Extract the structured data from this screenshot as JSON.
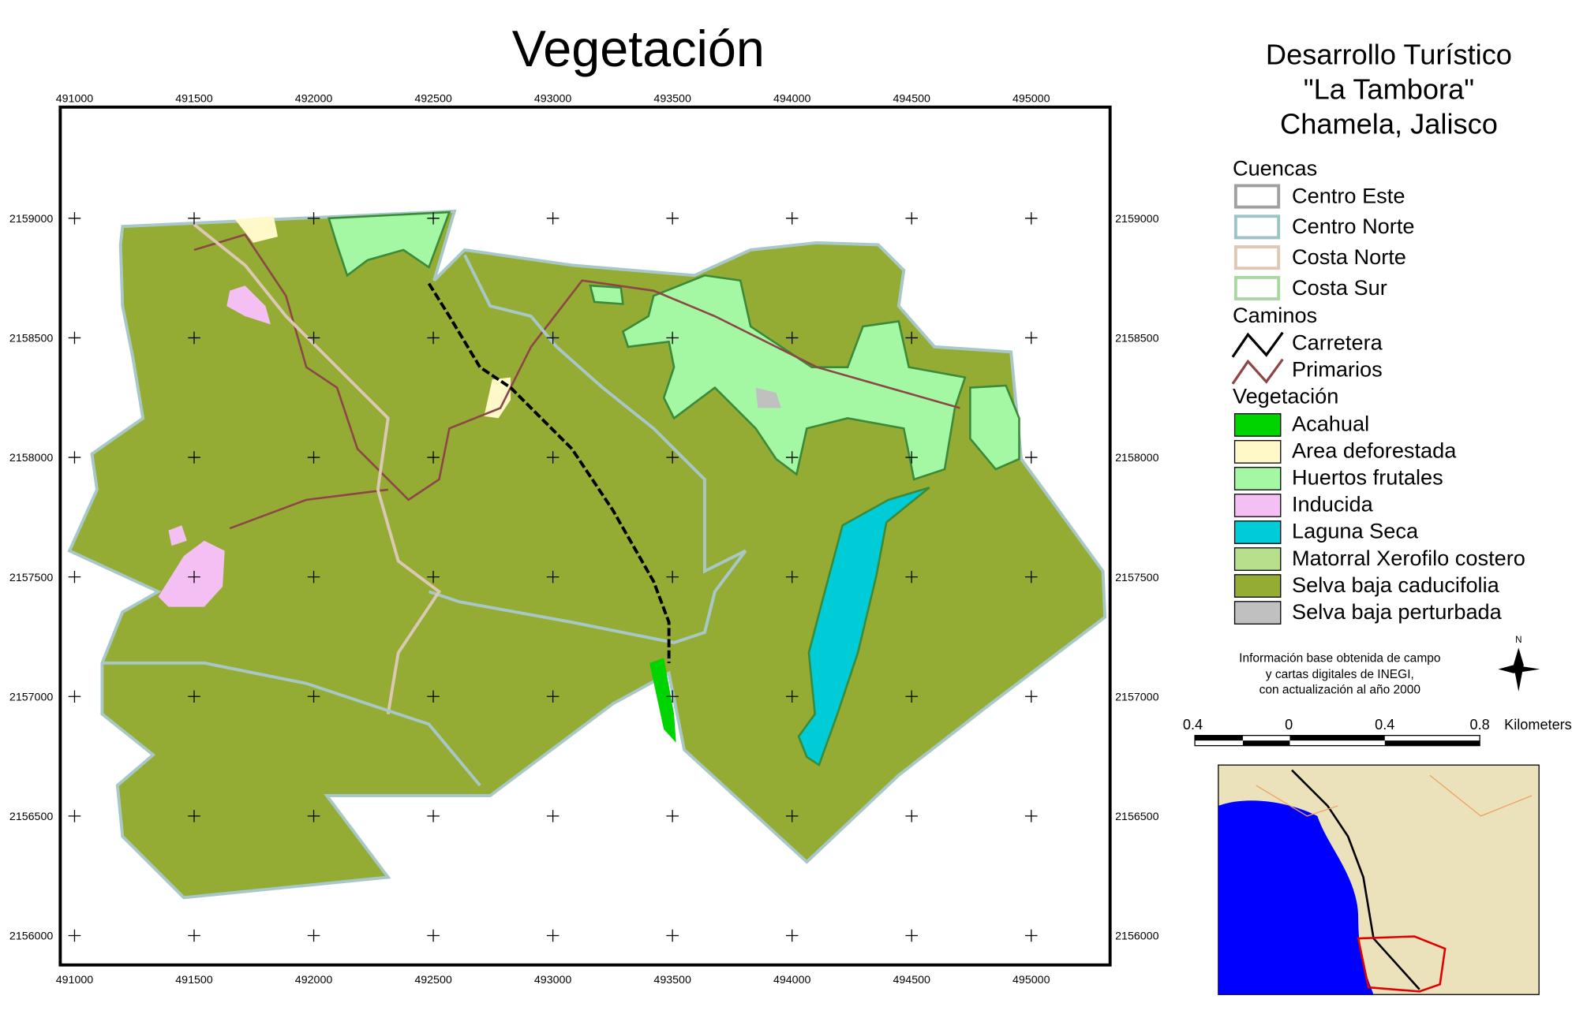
{
  "title": "Vegetación",
  "header": {
    "lines": [
      "Desarrollo Turístico",
      "\"La Tambora\"",
      "Chamela, Jalisco"
    ]
  },
  "legend": {
    "groups": [
      {
        "title": "Cuencas",
        "kind": "outline",
        "items": [
          {
            "label": "Centro Este",
            "color": "#a0a0a0"
          },
          {
            "label": "Centro Norte",
            "color": "#9cc4c4"
          },
          {
            "label": "Costa Norte",
            "color": "#dcc8b4"
          },
          {
            "label": "Costa Sur",
            "color": "#a8d8a0"
          }
        ]
      },
      {
        "title": "Caminos",
        "kind": "line",
        "items": [
          {
            "label": "Carretera",
            "color": "#000000"
          },
          {
            "label": "Primarios",
            "color": "#8c4646"
          }
        ]
      },
      {
        "title": "Vegetación",
        "kind": "fill",
        "items": [
          {
            "label": "Acahual",
            "color": "#00d400"
          },
          {
            "label": "Area deforestada",
            "color": "#fff8c8"
          },
          {
            "label": "Huertos frutales",
            "color": "#a4f8a4"
          },
          {
            "label": "Inducida",
            "color": "#f4c0f4"
          },
          {
            "label": "Laguna Seca",
            "color": "#00ccd8"
          },
          {
            "label": "Matorral Xerofilo costero",
            "color": "#b8e08c"
          },
          {
            "label": "Selva baja caducifolia",
            "color": "#94ac34"
          },
          {
            "label": "Selva baja perturbada",
            "color": "#c0c0c0"
          }
        ]
      }
    ]
  },
  "note": [
    "Información base obtenida de campo",
    "y cartas digitales de INEGI,",
    "con actualización al año 2000"
  ],
  "north": "N",
  "scale_bar": {
    "labels": [
      "0.4",
      "0",
      "0.4",
      "0.8"
    ],
    "unit": "Kilometers"
  },
  "x_ticks": [
    491000,
    491500,
    492000,
    492500,
    493000,
    493500,
    494000,
    494500,
    495000
  ],
  "y_ticks": [
    2159000,
    2158500,
    2158000,
    2157500,
    2157000,
    2156500,
    2156000
  ]
}
